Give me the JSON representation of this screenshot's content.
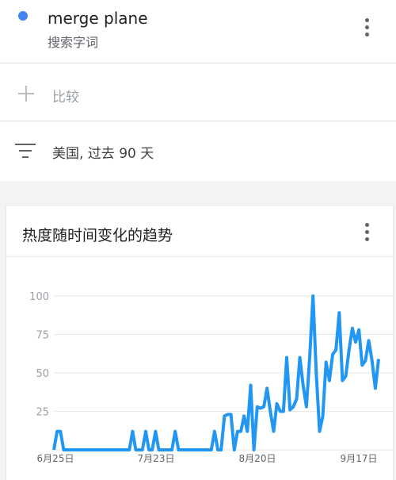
{
  "search_term": {
    "name": "merge plane",
    "subtitle": "搜索字词",
    "color": "#4285f4"
  },
  "compare": {
    "label": "比较"
  },
  "filter": {
    "label": "美国, 过去 90 天"
  },
  "chart_card": {
    "title": "热度随时间变化的趋势"
  },
  "chart_data": {
    "type": "line",
    "title": "热度随时间变化的趋势",
    "ylim": [
      0,
      100
    ],
    "yticks": [
      25,
      50,
      75,
      100
    ],
    "xtick_labels": [
      "6月25日",
      "7月23日",
      "8月20日",
      "9月17日"
    ],
    "grid": true,
    "series": [
      {
        "color": "#2196f3",
        "values": [
          0,
          12,
          12,
          0,
          0,
          0,
          0,
          0,
          0,
          0,
          0,
          0,
          0,
          0,
          0,
          0,
          0,
          0,
          0,
          0,
          0,
          0,
          0,
          0,
          12,
          0,
          0,
          0,
          12,
          0,
          0,
          12,
          0,
          0,
          0,
          0,
          0,
          12,
          0,
          0,
          0,
          0,
          0,
          0,
          0,
          0,
          0,
          0,
          0,
          12,
          0,
          0,
          22,
          23,
          23,
          0,
          12,
          12,
          22,
          12,
          42,
          0,
          28,
          27,
          28,
          40,
          25,
          12,
          30,
          25,
          25,
          60,
          26,
          28,
          33,
          60,
          42,
          28,
          60,
          100,
          50,
          12,
          22,
          57,
          45,
          62,
          65,
          89,
          45,
          48,
          65,
          79,
          70,
          78,
          55,
          58,
          71,
          58,
          40,
          59
        ]
      }
    ]
  }
}
